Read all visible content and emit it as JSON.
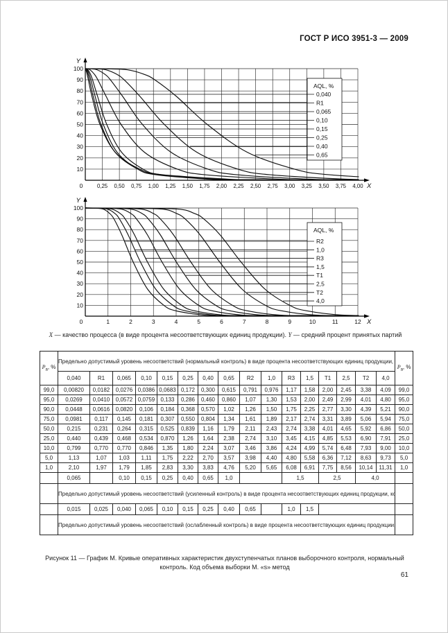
{
  "page": {
    "header": "ГОСТ Р ИСО 3951-3 — 2009",
    "page_number": "61",
    "axis_caption": {
      "x_symbol": "X",
      "x_text": " — качество процесса (в виде процента несоответствующих единиц продукции). ",
      "y_symbol": "Y",
      "y_text": " — средний процент принятых партий"
    },
    "figure_caption": "Рисунок 11 — График М. Кривые оперативных характеристик двухступенчатых планов выборочного контроля, нормальный контроль. Код объема выборки М. «s» метод"
  },
  "chart_data": [
    {
      "type": "line",
      "id": "chart1",
      "title": "",
      "xlabel": "X",
      "ylabel": "Y",
      "xlim": [
        0,
        4.0
      ],
      "ylim": [
        0,
        100
      ],
      "x_tick_step": 0.25,
      "origin_label": "0",
      "xtick_labels": [
        "0,25",
        "0,50",
        "0,75",
        "1,00",
        "1,25",
        "1,50",
        "1,75",
        "2,00",
        "2,25",
        "2,50",
        "2,75",
        "3,00",
        "3,25",
        "3,50",
        "3,75",
        "4,00"
      ],
      "ytick_labels": [
        "100",
        "90",
        "80",
        "70",
        "60",
        "50",
        "40",
        "30",
        "20",
        "10"
      ],
      "grid": true,
      "legend_position": "right-inside",
      "legend_title": "AQL, %",
      "pa_levels": [
        99,
        95,
        90,
        75,
        50,
        25,
        10,
        5,
        1
      ],
      "series": [
        {
          "name": "0,040",
          "x": [
            0.0082,
            0.0269,
            0.0448,
            0.0981,
            0.215,
            0.44,
            0.799,
            1.13,
            2.1
          ]
        },
        {
          "name": "R1",
          "x": [
            0.0182,
            0.041,
            0.0616,
            0.117,
            0.231,
            0.439,
            0.77,
            1.07,
            1.97
          ]
        },
        {
          "name": "0,065",
          "x": [
            0.0276,
            0.0572,
            0.082,
            0.145,
            0.264,
            0.468,
            0.77,
            1.03,
            1.79
          ]
        },
        {
          "name": "0,10",
          "x": [
            0.0386,
            0.0759,
            0.106,
            0.181,
            0.315,
            0.534,
            0.846,
            1.11,
            1.85
          ]
        },
        {
          "name": "0,15",
          "x": [
            0.0683,
            0.133,
            0.184,
            0.307,
            0.525,
            0.87,
            1.35,
            1.75,
            2.83
          ]
        },
        {
          "name": "0,25",
          "x": [
            0.172,
            0.286,
            0.368,
            0.55,
            0.839,
            1.26,
            1.8,
            2.22,
            3.3
          ]
        },
        {
          "name": "0,40",
          "x": [
            0.3,
            0.46,
            0.57,
            0.804,
            1.16,
            1.64,
            2.24,
            2.7,
            3.83
          ]
        },
        {
          "name": "0,65",
          "x": [
            0.615,
            0.86,
            1.02,
            1.34,
            1.79,
            2.38,
            3.07,
            3.57,
            4.76
          ]
        }
      ]
    },
    {
      "type": "line",
      "id": "chart2",
      "title": "",
      "xlabel": "X",
      "ylabel": "Y",
      "xlim": [
        0,
        12
      ],
      "ylim": [
        0,
        100
      ],
      "x_tick_step": 1,
      "origin_label": "0",
      "xtick_labels": [
        "1",
        "2",
        "3",
        "4",
        "5",
        "6",
        "7",
        "8",
        "9",
        "10",
        "11",
        "12"
      ],
      "ytick_labels": [
        "100",
        "90",
        "80",
        "70",
        "60",
        "50",
        "40",
        "30",
        "20",
        "10"
      ],
      "grid": true,
      "legend_position": "right-inside",
      "legend_title": "AQL, %",
      "pa_levels": [
        99,
        95,
        90,
        75,
        50,
        25,
        10,
        5,
        1
      ],
      "series": [
        {
          "name": "R2",
          "x": [
            0.791,
            1.07,
            1.26,
            1.61,
            2.11,
            2.74,
            3.46,
            3.98,
            5.2
          ]
        },
        {
          "name": "1,0",
          "x": [
            0.976,
            1.3,
            1.5,
            1.89,
            2.43,
            3.1,
            3.86,
            4.4,
            5.65
          ]
        },
        {
          "name": "R3",
          "x": [
            1.17,
            1.53,
            1.75,
            2.17,
            2.74,
            3.45,
            4.24,
            4.8,
            6.08
          ]
        },
        {
          "name": "1,5",
          "x": [
            1.58,
            2.0,
            2.25,
            2.74,
            3.38,
            4.15,
            4.99,
            5.58,
            6.91
          ]
        },
        {
          "name": "T1",
          "x": [
            2.0,
            2.49,
            2.77,
            3.31,
            4.01,
            4.85,
            5.74,
            6.36,
            7.75
          ]
        },
        {
          "name": "2,5",
          "x": [
            2.45,
            2.99,
            3.3,
            3.89,
            4.65,
            5.53,
            6.48,
            7.12,
            8.56
          ]
        },
        {
          "name": "T2",
          "x": [
            3.38,
            4.01,
            4.39,
            5.06,
            5.92,
            6.9,
            7.93,
            8.63,
            10.14
          ]
        },
        {
          "name": "4,0",
          "x": [
            4.09,
            4.8,
            5.21,
            5.94,
            6.86,
            7.91,
            9.0,
            9.73,
            11.31
          ]
        }
      ]
    }
  ],
  "table": {
    "pa_header": {
      "symbol": "P",
      "subscript": "a",
      "suffix": ", %"
    },
    "normal_header": "Предельно допустимый уровень несоответствий (нормальный контроль) в виде процента несоответствующих единиц продукции, код объема выборки М",
    "columns": [
      "0,040",
      "R1",
      "0,065",
      "0,10",
      "0,15",
      "0,25",
      "0,40",
      "0,65",
      "R2",
      "1,0",
      "R3",
      "1,5",
      "T1",
      "2,5",
      "T2",
      "4,0"
    ],
    "rows": [
      {
        "pa": "99,0",
        "values": [
          "0,00820",
          "0,0182",
          "0,0276",
          "0,0386",
          "0,0683",
          "0,172",
          "0,300",
          "0,615",
          "0,791",
          "0,976",
          "1,17",
          "1,58",
          "2,00",
          "2,45",
          "3,38",
          "4,09"
        ]
      },
      {
        "pa": "95,0",
        "values": [
          "0,0269",
          "0,0410",
          "0,0572",
          "0,0759",
          "0,133",
          "0,286",
          "0,460",
          "0,860",
          "1,07",
          "1,30",
          "1,53",
          "2,00",
          "2,49",
          "2,99",
          "4,01",
          "4,80"
        ]
      },
      {
        "pa": "90,0",
        "values": [
          "0,0448",
          "0,0616",
          "0,0820",
          "0,106",
          "0,184",
          "0,368",
          "0,570",
          "1,02",
          "1,26",
          "1,50",
          "1,75",
          "2,25",
          "2,77",
          "3,30",
          "4,39",
          "5,21"
        ]
      },
      {
        "pa": "75,0",
        "values": [
          "0,0981",
          "0,117",
          "0,145",
          "0,181",
          "0,307",
          "0,550",
          "0,804",
          "1,34",
          "1,61",
          "1,89",
          "2,17",
          "2,74",
          "3,31",
          "3,89",
          "5,06",
          "5,94"
        ]
      },
      {
        "pa": "50,0",
        "values": [
          "0,215",
          "0,231",
          "0,264",
          "0,315",
          "0,525",
          "0,839",
          "1,16",
          "1,79",
          "2,11",
          "2,43",
          "2,74",
          "3,38",
          "4,01",
          "4,65",
          "5,92",
          "6,86"
        ]
      },
      {
        "pa": "25,0",
        "values": [
          "0,440",
          "0,439",
          "0,468",
          "0,534",
          "0,870",
          "1,26",
          "1,64",
          "2,38",
          "2,74",
          "3,10",
          "3,45",
          "4,15",
          "4,85",
          "5,53",
          "6,90",
          "7,91"
        ]
      },
      {
        "pa": "10,0",
        "values": [
          "0,799",
          "0,770",
          "0,770",
          "0,846",
          "1,35",
          "1,80",
          "2,24",
          "3,07",
          "3,46",
          "3,86",
          "4,24",
          "4,99",
          "5,74",
          "6,48",
          "7,93",
          "9,00"
        ]
      },
      {
        "pa": "5,0",
        "values": [
          "1,13",
          "1,07",
          "1,03",
          "1,11",
          "1,75",
          "2,22",
          "2,70",
          "3,57",
          "3,98",
          "4,40",
          "4,80",
          "5,58",
          "6,36",
          "7,12",
          "8,63",
          "9,73"
        ]
      },
      {
        "pa": "1,0",
        "values": [
          "2,10",
          "1,97",
          "1,79",
          "1,85",
          "2,83",
          "3,30",
          "3,83",
          "4,76",
          "5,20",
          "5,65",
          "6,08",
          "6,91",
          "7,75",
          "8,56",
          "10,14",
          "11,31"
        ]
      }
    ],
    "tightened_cells": [
      {
        "t": "0,065",
        "s": 1
      },
      {
        "t": "",
        "s": 1
      },
      {
        "t": "0,10",
        "s": 1
      },
      {
        "t": "0,15",
        "s": 1
      },
      {
        "t": "0,25",
        "s": 1
      },
      {
        "t": "0,40",
        "s": 1
      },
      {
        "t": "0,65",
        "s": 1
      },
      {
        "t": "1,0",
        "s": 1
      },
      {
        "t": "",
        "s": 2
      },
      {
        "t": "1,5",
        "s": 2
      },
      {
        "t": "2,5",
        "s": 2
      },
      {
        "t": "4,0",
        "s": 2
      }
    ],
    "tightened_header": "Предельно допустимый уровень несоответствий (усиленный контроль) в виде процента несоответствующих единиц продукции, код объема выборки М",
    "reduced_cells": [
      {
        "t": "0,015",
        "s": 1
      },
      {
        "t": "0,025",
        "s": 1
      },
      {
        "t": "0,040",
        "s": 1
      },
      {
        "t": "0,065",
        "s": 1
      },
      {
        "t": "0,10",
        "s": 1
      },
      {
        "t": "0,15",
        "s": 1
      },
      {
        "t": "0,25",
        "s": 1
      },
      {
        "t": "0,40",
        "s": 1
      },
      {
        "t": "0,65",
        "s": 1
      },
      {
        "t": "",
        "s": 1
      },
      {
        "t": "1,0",
        "s": 1
      },
      {
        "t": "1,5",
        "s": 1
      },
      {
        "t": "",
        "s": 4
      }
    ],
    "reduced_header": "Предельно допустимый уровень несоответствий (ослабленный контроль) в виде процента несоответствующих единиц продукции, код объема выборки Р"
  }
}
